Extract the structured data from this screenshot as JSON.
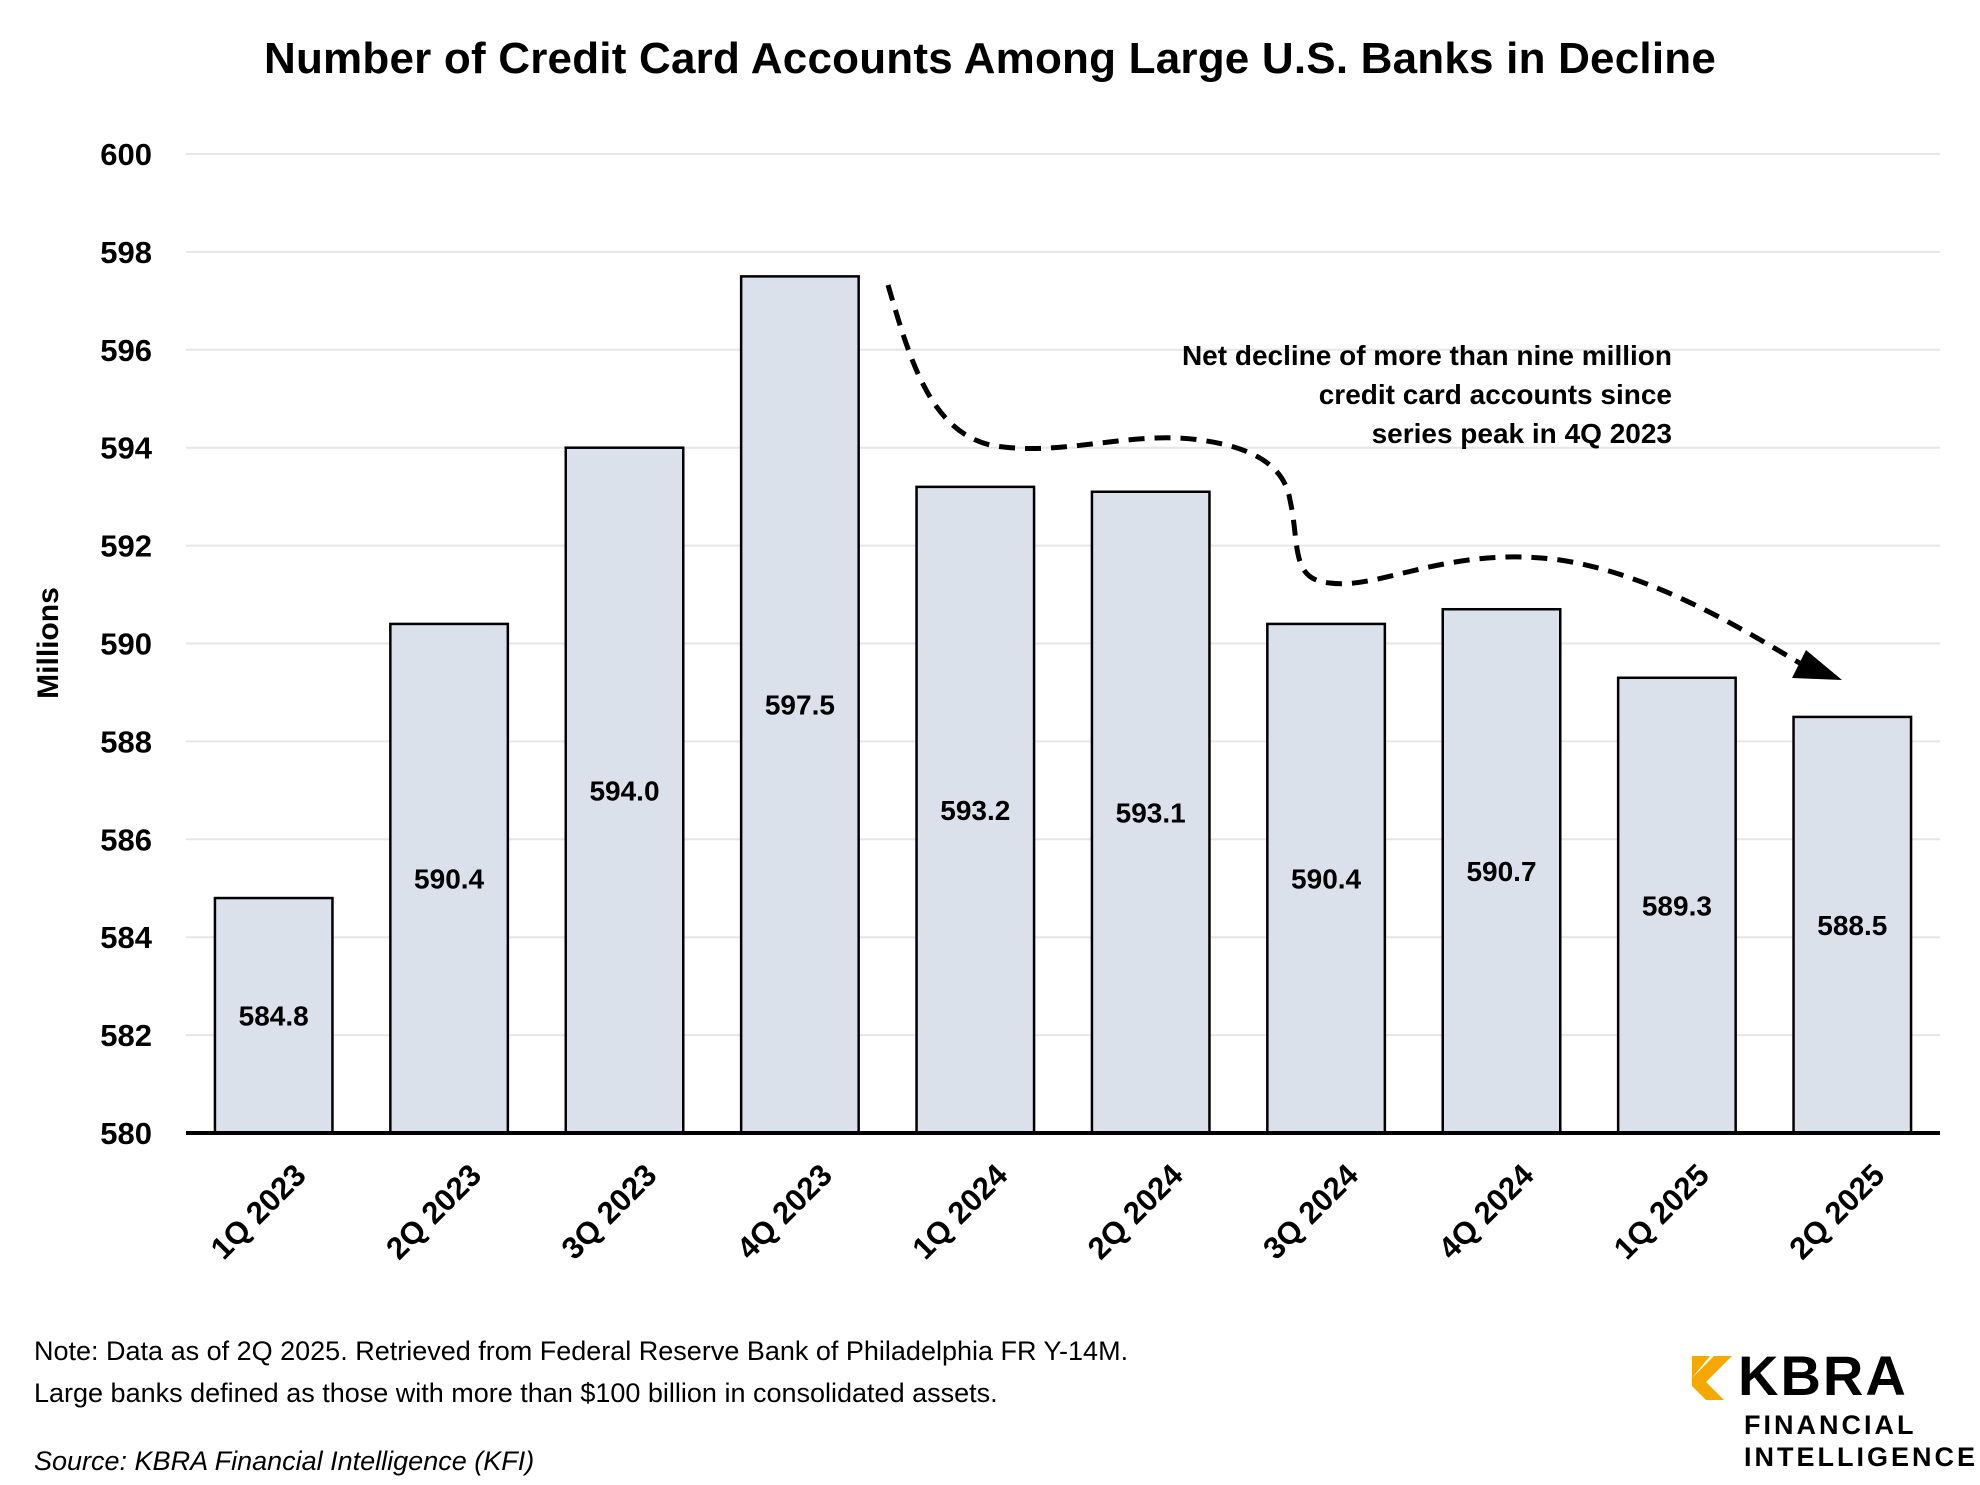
{
  "chart_data": {
    "type": "bar",
    "title": "Number of Credit Card Accounts Among Large U.S. Banks in Decline",
    "ylabel": "Millions",
    "xlabel": "",
    "ylim": [
      580,
      600
    ],
    "yticks": [
      "580",
      "582",
      "584",
      "586",
      "588",
      "590",
      "592",
      "594",
      "596",
      "598",
      "600"
    ],
    "grid": true,
    "categories": [
      "1Q 2023",
      "2Q 2023",
      "3Q 2023",
      "4Q 2023",
      "1Q 2024",
      "2Q 2024",
      "3Q 2024",
      "4Q 2024",
      "1Q 2025",
      "2Q 2025"
    ],
    "values": [
      584.8,
      590.4,
      594.0,
      597.5,
      593.2,
      593.1,
      590.4,
      590.7,
      589.3,
      588.5
    ],
    "value_labels": [
      "584.8",
      "590.4",
      "594.0",
      "597.5",
      "593.2",
      "593.1",
      "590.4",
      "590.7",
      "589.3",
      "588.5"
    ],
    "bar_color": "#dae1ea",
    "annotation": [
      "Net decline of more than nine million",
      "credit card accounts since",
      "series peak in 4Q 2023"
    ]
  },
  "footer": {
    "note_line1": "Note: Data as of 2Q 2025. Retrieved from Federal Reserve Bank of Philadelphia FR Y-14M.",
    "note_line2": "Large banks defined as those with more than $100 billion in consolidated assets.",
    "source": "Source: KBRA Financial Intelligence (KFI)"
  },
  "logo": {
    "brand": "KBRA",
    "line1": "FINANCIAL",
    "line2": "INTELLIGENCE",
    "accent_color": "#f5a800"
  }
}
